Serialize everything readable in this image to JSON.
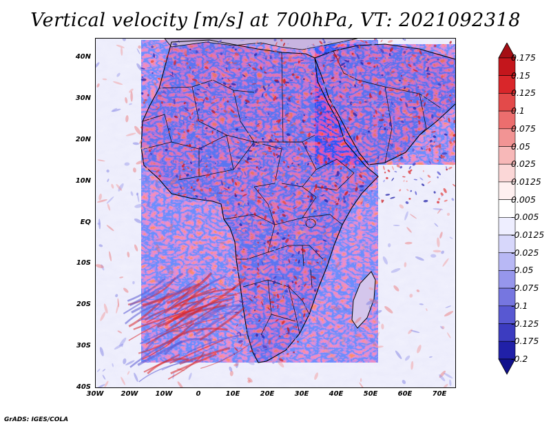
{
  "title": "Vertical velocity [m/s] at 700hPa, VT: 2021092318",
  "credit": "GrADS: IGES/COLA",
  "lat_labels": [
    "40N",
    "30N",
    "20N",
    "10N",
    "EQ",
    "10S",
    "20S",
    "30S",
    "40S"
  ],
  "lon_labels": [
    "30W",
    "20W",
    "10W",
    "0",
    "10E",
    "20E",
    "30E",
    "40E",
    "50E",
    "60E",
    "70E"
  ],
  "colorbar": {
    "labels": [
      "0.175",
      "0.15",
      "0.125",
      "0.1",
      "0.075",
      "0.05",
      "0.025",
      "0.0125",
      "0.005",
      "-0.005",
      "-0.0125",
      "-0.025",
      "-0.05",
      "-0.075",
      "-0.1",
      "-0.125",
      "-0.175",
      "-0.2"
    ],
    "colors": [
      "#a50f15",
      "#c4161c",
      "#d9262a",
      "#e34a4a",
      "#ec6e6e",
      "#f29494",
      "#f7b8b8",
      "#fbd7d7",
      "#fff0f0",
      "#ffffff",
      "#eeeeff",
      "#d7d7fb",
      "#b8b8f5",
      "#9696ec",
      "#7676e0",
      "#5858d2",
      "#3c3cc0",
      "#2020a8",
      "#10108c"
    ]
  },
  "colors": {
    "ocean_base": "#ececfb",
    "land_base": "#d7c3e6",
    "strong_up": "#2b2bbb",
    "strong_down": "#c0252c"
  }
}
